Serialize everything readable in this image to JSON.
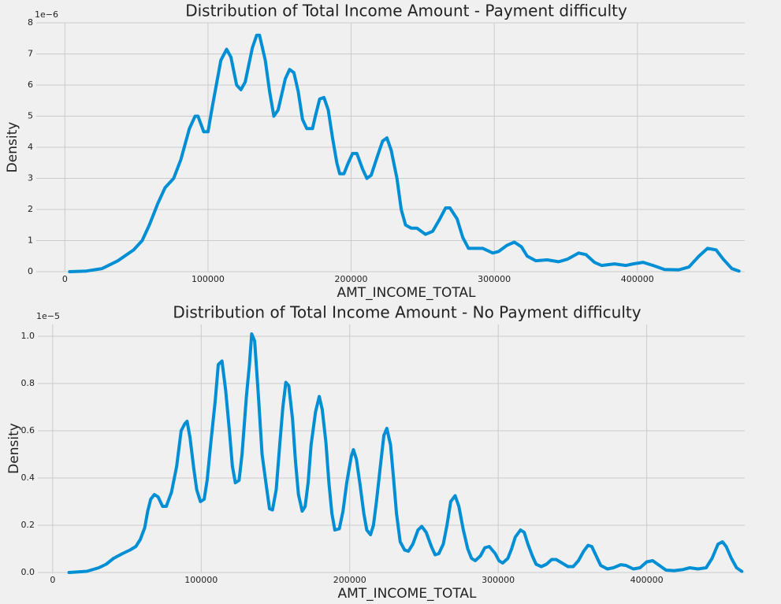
{
  "chart_data": [
    {
      "type": "line",
      "title": "Distribution of Total Income Amount - Payment difficulty",
      "xlabel": "AMT_INCOME_TOTAL",
      "ylabel": "Density",
      "y_offset_label": "1e−6",
      "color": "#008fd5",
      "grid": true,
      "xlim": [
        -20000,
        475000
      ],
      "ylim": [
        0,
        8
      ],
      "xticks": [
        0,
        100000,
        200000,
        300000,
        400000
      ],
      "yticks": [
        0,
        1,
        2,
        3,
        4,
        5,
        6,
        7,
        8
      ],
      "x": [
        3300,
        15000,
        26000,
        37000,
        48000,
        54000,
        59000,
        65000,
        70000,
        76000,
        81000,
        87000,
        91000,
        93000,
        97000,
        100000,
        103000,
        109000,
        113000,
        116000,
        120000,
        123000,
        126000,
        131000,
        134000,
        136000,
        140000,
        143000,
        146000,
        149000,
        154000,
        157000,
        160000,
        163000,
        166000,
        169000,
        173000,
        175000,
        178000,
        181000,
        184000,
        187000,
        190000,
        192000,
        195000,
        198000,
        201000,
        204000,
        208000,
        211000,
        214000,
        219000,
        222000,
        225000,
        228000,
        232000,
        235000,
        238000,
        242000,
        246000,
        252000,
        257000,
        262000,
        266000,
        269000,
        274000,
        278000,
        282000,
        288000,
        292000,
        299000,
        303000,
        309000,
        314000,
        319000,
        323000,
        329000,
        337000,
        345000,
        351000,
        359000,
        364000,
        370000,
        375000,
        384000,
        392000,
        397000,
        404000,
        411000,
        419000,
        429000,
        436000,
        443000,
        449000,
        455000,
        460000,
        466000,
        471000
      ],
      "values": [
        0,
        0.02,
        0.1,
        0.35,
        0.7,
        1.0,
        1.5,
        2.2,
        2.7,
        3.0,
        3.6,
        4.6,
        5.0,
        5.0,
        4.5,
        4.5,
        5.3,
        6.8,
        7.15,
        6.9,
        6.0,
        5.85,
        6.1,
        7.2,
        7.6,
        7.6,
        6.8,
        5.8,
        5.0,
        5.2,
        6.2,
        6.5,
        6.4,
        5.8,
        4.9,
        4.6,
        4.6,
        5.0,
        5.55,
        5.6,
        5.2,
        4.3,
        3.5,
        3.15,
        3.15,
        3.5,
        3.8,
        3.8,
        3.3,
        3.0,
        3.1,
        3.8,
        4.2,
        4.3,
        3.9,
        3.0,
        2.0,
        1.5,
        1.4,
        1.4,
        1.2,
        1.3,
        1.7,
        2.05,
        2.05,
        1.7,
        1.1,
        0.75,
        0.75,
        0.75,
        0.6,
        0.65,
        0.85,
        0.95,
        0.8,
        0.5,
        0.35,
        0.38,
        0.32,
        0.4,
        0.6,
        0.55,
        0.3,
        0.2,
        0.25,
        0.2,
        0.25,
        0.3,
        0.2,
        0.07,
        0.06,
        0.15,
        0.5,
        0.75,
        0.7,
        0.4,
        0.1,
        0.02
      ]
    },
    {
      "type": "line",
      "title": "Distribution of Total Income Amount - No Payment difficulty",
      "xlabel": "AMT_INCOME_TOTAL",
      "ylabel": "Density",
      "y_offset_label": "1e−5",
      "color": "#008fd5",
      "grid": true,
      "xlim": [
        -10000,
        466000
      ],
      "ylim": [
        0,
        1.05
      ],
      "xticks": [
        0,
        100000,
        200000,
        300000,
        400000
      ],
      "yticks": [
        {
          "value": 0,
          "label": "0.0"
        },
        0.2,
        0.4,
        0.6,
        0.8,
        {
          "value": 1,
          "label": "1.0"
        }
      ],
      "x": [
        11000,
        23000,
        31000,
        36000,
        41000,
        47000,
        52000,
        56000,
        59000,
        62000,
        64000,
        66000,
        68500,
        71000,
        74000,
        76500,
        80000,
        83500,
        86500,
        89000,
        90500,
        92500,
        95000,
        97000,
        99500,
        102000,
        104000,
        106500,
        109500,
        111500,
        114000,
        116500,
        119000,
        121000,
        123000,
        125500,
        127500,
        130500,
        132500,
        134000,
        136000,
        138500,
        141000,
        144000,
        146000,
        148000,
        150500,
        153000,
        155000,
        157000,
        159000,
        161500,
        163500,
        165500,
        168000,
        170000,
        172000,
        174000,
        177000,
        179500,
        181500,
        184000,
        186000,
        188000,
        190000,
        193000,
        195500,
        198000,
        201000,
        202500,
        204500,
        207000,
        209500,
        211500,
        214000,
        216000,
        218000,
        221000,
        223000,
        225000,
        227500,
        229500,
        231500,
        234000,
        237000,
        239500,
        242500,
        246000,
        248500,
        251500,
        255000,
        257500,
        260000,
        263000,
        265500,
        268000,
        271000,
        273500,
        276500,
        279500,
        282000,
        284500,
        288000,
        291000,
        294000,
        298000,
        300500,
        303000,
        306500,
        309000,
        311500,
        315000,
        317500,
        320000,
        323000,
        325500,
        329000,
        332500,
        336000,
        339000,
        343000,
        347000,
        350500,
        354000,
        357500,
        360500,
        363000,
        366000,
        369000,
        373500,
        377500,
        382500,
        386000,
        391000,
        395500,
        400000,
        404000,
        408500,
        413000,
        418500,
        424000,
        429000,
        434500,
        440000,
        444000,
        448000,
        451000,
        453500,
        457000,
        460500,
        464000
      ],
      "values": [
        0,
        0.005,
        0.02,
        0.035,
        0.06,
        0.08,
        0.095,
        0.11,
        0.14,
        0.19,
        0.26,
        0.31,
        0.33,
        0.32,
        0.28,
        0.28,
        0.34,
        0.45,
        0.6,
        0.63,
        0.64,
        0.57,
        0.44,
        0.35,
        0.3,
        0.31,
        0.39,
        0.55,
        0.73,
        0.88,
        0.895,
        0.77,
        0.6,
        0.45,
        0.38,
        0.39,
        0.5,
        0.75,
        0.88,
        1.01,
        0.98,
        0.75,
        0.5,
        0.36,
        0.27,
        0.265,
        0.35,
        0.55,
        0.7,
        0.805,
        0.79,
        0.65,
        0.47,
        0.33,
        0.26,
        0.28,
        0.38,
        0.54,
        0.68,
        0.745,
        0.69,
        0.55,
        0.38,
        0.25,
        0.18,
        0.185,
        0.26,
        0.38,
        0.49,
        0.52,
        0.48,
        0.37,
        0.25,
        0.18,
        0.16,
        0.2,
        0.3,
        0.47,
        0.58,
        0.61,
        0.54,
        0.4,
        0.25,
        0.13,
        0.095,
        0.09,
        0.12,
        0.18,
        0.195,
        0.17,
        0.11,
        0.075,
        0.08,
        0.12,
        0.2,
        0.3,
        0.325,
        0.28,
        0.18,
        0.1,
        0.06,
        0.05,
        0.07,
        0.105,
        0.11,
        0.08,
        0.05,
        0.04,
        0.06,
        0.1,
        0.15,
        0.18,
        0.17,
        0.12,
        0.07,
        0.035,
        0.025,
        0.035,
        0.055,
        0.055,
        0.04,
        0.025,
        0.025,
        0.05,
        0.09,
        0.115,
        0.11,
        0.07,
        0.03,
        0.015,
        0.02,
        0.033,
        0.03,
        0.015,
        0.02,
        0.045,
        0.05,
        0.03,
        0.01,
        0.008,
        0.012,
        0.02,
        0.015,
        0.02,
        0.06,
        0.12,
        0.13,
        0.11,
        0.06,
        0.02,
        0.005
      ]
    }
  ]
}
